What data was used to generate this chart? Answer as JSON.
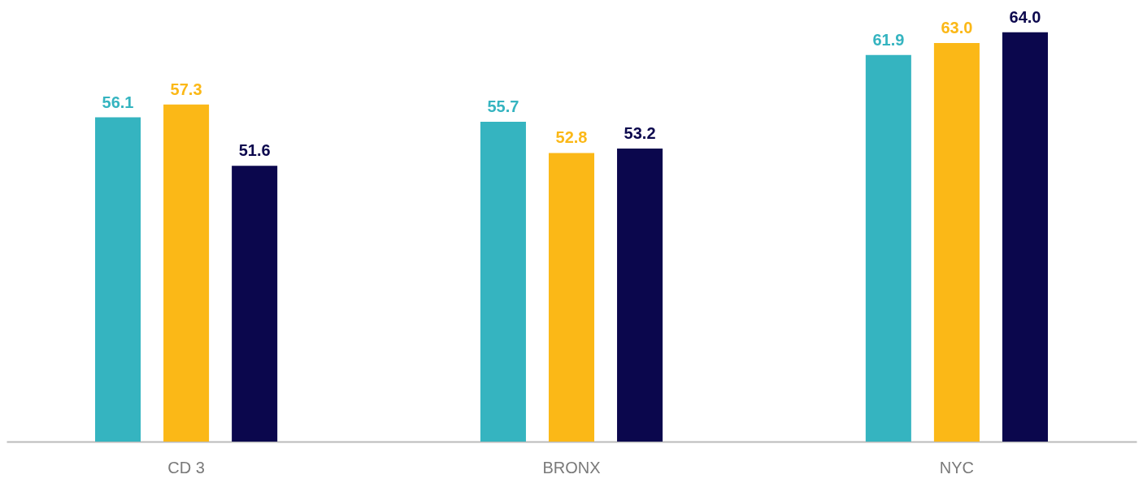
{
  "chart_data": {
    "type": "bar",
    "categories": [
      "CD 3",
      "BRONX",
      "NYC"
    ],
    "series": [
      {
        "color": "#35b4c0",
        "values": [
          56.1,
          55.7,
          61.9
        ],
        "value_labels": [
          "56.1",
          "55.7",
          "61.9"
        ]
      },
      {
        "color": "#fbb817",
        "values": [
          57.3,
          52.8,
          63.0
        ],
        "value_labels": [
          "57.3",
          "52.8",
          "63.0"
        ]
      },
      {
        "color": "#0b074d",
        "values": [
          51.6,
          53.2,
          64.0
        ],
        "value_labels": [
          "51.6",
          "53.2",
          "64.0"
        ]
      }
    ],
    "ylim": [
      26,
      67
    ],
    "tick_labels": "x"
  }
}
